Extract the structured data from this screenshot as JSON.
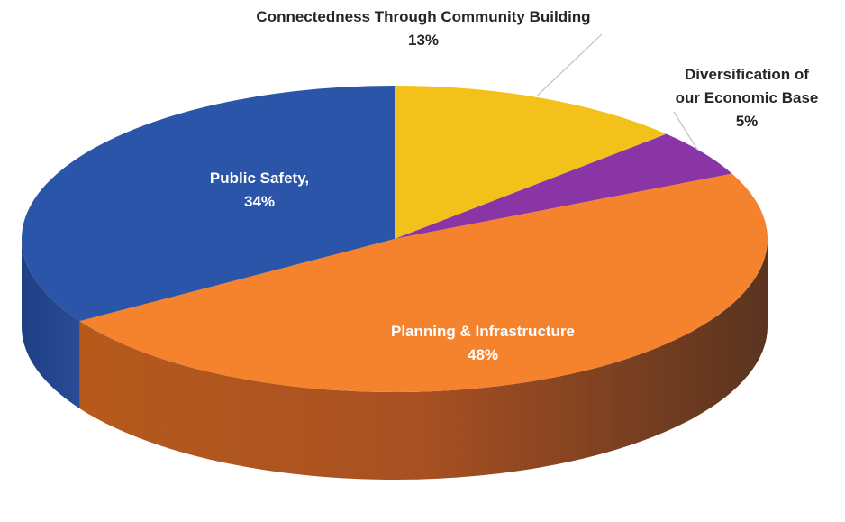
{
  "chart_data": {
    "type": "pie",
    "title": "",
    "categories": [
      "Connectedness Through Community Building",
      "Diversification of our Economic Base",
      "Planning & Infrastructure",
      "Public Safety,"
    ],
    "values": [
      13,
      5,
      48,
      34
    ],
    "value_labels": [
      "13%",
      "5%",
      "48%",
      "34%"
    ],
    "colors": [
      "#f2c21b",
      "#8a35a6",
      "#f5822c",
      "#2a55a8"
    ],
    "label_lines": {
      "connectedness": [
        "Connectedness Through Community Building",
        "13%"
      ],
      "diversification": [
        "Diversification of",
        "our Economic Base",
        "5%"
      ],
      "planning": [
        "Planning & Infrastructure",
        "48%"
      ],
      "safety": [
        "Public Safety,",
        "34%"
      ]
    },
    "start_angle_deg": 0,
    "direction": "clockwise",
    "style": "3d",
    "legend": "none"
  }
}
